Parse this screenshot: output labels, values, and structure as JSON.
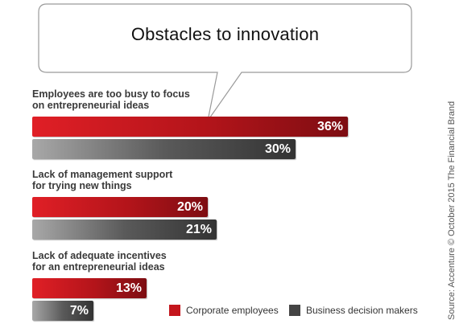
{
  "chart_data": {
    "type": "bar",
    "orientation": "horizontal",
    "title": "Obstacles to innovation",
    "categories": [
      [
        "Employees are too busy to focus",
        "on entrepreneurial ideas"
      ],
      [
        "Lack of management support",
        "for trying new things"
      ],
      [
        "Lack of adequate incentives",
        "for an entrepreneurial ideas"
      ]
    ],
    "series": [
      {
        "name": "Corporate employees",
        "values": [
          36,
          20,
          13
        ],
        "labels": [
          "36%",
          "20%",
          "13%"
        ],
        "color": "#c4161c"
      },
      {
        "name": "Business decision makers",
        "values": [
          30,
          21,
          7
        ],
        "labels": [
          "30%",
          "21%",
          "7%"
        ],
        "color": "#4a4a4a"
      }
    ],
    "unit": "%",
    "legend_position": "bottom-right",
    "grid": false,
    "source": "Source: Accenture © October 2015 The Financial Brand"
  }
}
